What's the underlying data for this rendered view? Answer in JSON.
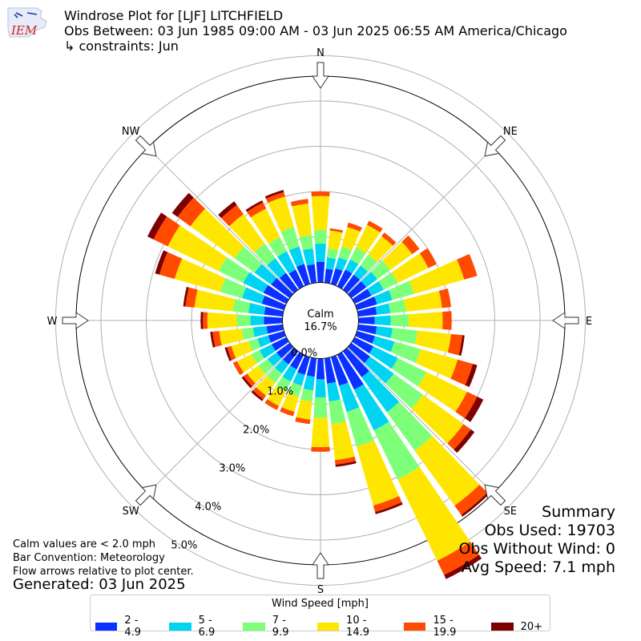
{
  "header": {
    "title": "Windrose Plot for [LJF] LITCHFIELD",
    "period": "Obs Between: 03 Jun 1985 09:00 AM - 03 Jun 2025 06:55 AM America/Chicago",
    "constraints": "↳ constraints: Jun"
  },
  "logo": {
    "text": "IEM",
    "color": "#cc2222"
  },
  "notes": {
    "calm_note": "Calm values are < 2.0 mph",
    "bar_convention": "Bar Convention: Meteorology",
    "flow_note": "Flow arrows relative to plot center.",
    "generated": "Generated: 03 Jun 2025"
  },
  "summary": {
    "title": "Summary",
    "obs_used": "Obs Used: 19703",
    "obs_without_wind": "Obs Without Wind: 0",
    "avg_speed": "Avg Speed: 7.1 mph"
  },
  "chart_data": {
    "type": "windrose",
    "calm_label": "Calm",
    "calm_value": "16.7%",
    "radial_labels": [
      "0.0%",
      "1.0%",
      "2.0%",
      "3.0%",
      "4.0%",
      "5.0%"
    ],
    "radial_ticks": [
      0,
      1,
      2,
      3,
      4,
      5
    ],
    "compass_labels": [
      "N",
      "NE",
      "E",
      "SE",
      "S",
      "SW",
      "W",
      "NW"
    ],
    "legend_title": "Wind Speed [mph]",
    "bins": [
      {
        "label": "2 - 4.9",
        "color": "#0a31ff"
      },
      {
        "label": "5 - 6.9",
        "color": "#00d4f2"
      },
      {
        "label": "7 - 9.9",
        "color": "#7dff7a"
      },
      {
        "label": "10 - 14.9",
        "color": "#ffe600"
      },
      {
        "label": "15 - 19.9",
        "color": "#ff4a00"
      },
      {
        "label": "20+",
        "color": "#7f0000"
      }
    ],
    "directions_deg": [
      0,
      10,
      20,
      30,
      40,
      50,
      60,
      70,
      80,
      90,
      100,
      110,
      120,
      130,
      140,
      150,
      160,
      170,
      180,
      190,
      200,
      210,
      220,
      230,
      240,
      250,
      260,
      270,
      280,
      290,
      300,
      310,
      320,
      330,
      340,
      350
    ],
    "cumulative_percent": [
      [
        0.45,
        0.85,
        1.15,
        1.9,
        2.0,
        2.0
      ],
      [
        0.3,
        0.55,
        0.75,
        1.15,
        1.2,
        1.2
      ],
      [
        0.35,
        0.6,
        0.85,
        1.3,
        1.4,
        1.4
      ],
      [
        0.4,
        0.65,
        0.95,
        1.5,
        1.6,
        1.6
      ],
      [
        0.4,
        0.65,
        0.95,
        1.45,
        1.55,
        1.55
      ],
      [
        0.4,
        0.7,
        1.05,
        1.65,
        1.85,
        1.85
      ],
      [
        0.4,
        0.7,
        1.05,
        1.8,
        2.0,
        2.0
      ],
      [
        0.45,
        0.8,
        1.3,
        2.45,
        2.75,
        2.75
      ],
      [
        0.4,
        0.7,
        1.05,
        1.85,
        2.05,
        2.05
      ],
      [
        0.35,
        0.7,
        1.1,
        1.85,
        2.05,
        2.05
      ],
      [
        0.4,
        0.75,
        1.3,
        2.05,
        2.3,
        2.35
      ],
      [
        0.4,
        0.85,
        1.45,
        2.3,
        2.65,
        2.75
      ],
      [
        0.45,
        1.05,
        1.75,
        2.75,
        3.0,
        3.15
      ],
      [
        0.5,
        1.15,
        1.95,
        3.05,
        3.25,
        3.35
      ],
      [
        0.7,
        1.65,
        2.7,
        4.2,
        4.45,
        4.5
      ],
      [
        0.85,
        1.85,
        3.05,
        5.05,
        5.4,
        5.5
      ],
      [
        0.65,
        1.25,
        2.05,
        3.4,
        3.55,
        3.6
      ],
      [
        0.55,
        0.95,
        1.45,
        2.25,
        2.35,
        2.4
      ],
      [
        0.45,
        0.85,
        1.3,
        1.95,
        2.05,
        2.05
      ],
      [
        0.4,
        0.7,
        0.95,
        1.35,
        1.45,
        1.45
      ],
      [
        0.4,
        0.65,
        0.9,
        1.25,
        1.35,
        1.35
      ],
      [
        0.35,
        0.65,
        0.9,
        1.25,
        1.35,
        1.35
      ],
      [
        0.35,
        0.6,
        0.85,
        1.2,
        1.3,
        1.35
      ],
      [
        0.35,
        0.6,
        0.85,
        1.15,
        1.25,
        1.3
      ],
      [
        0.35,
        0.65,
        0.85,
        1.2,
        1.3,
        1.3
      ],
      [
        0.35,
        0.6,
        0.8,
        1.2,
        1.3,
        1.35
      ],
      [
        0.35,
        0.65,
        0.9,
        1.4,
        1.55,
        1.6
      ],
      [
        0.4,
        0.7,
        1.0,
        1.65,
        1.75,
        1.8
      ],
      [
        0.4,
        0.75,
        1.1,
        1.95,
        2.15,
        2.2
      ],
      [
        0.5,
        0.95,
        1.45,
        2.5,
        2.85,
        2.95
      ],
      [
        0.55,
        1.05,
        1.65,
        2.9,
        3.25,
        3.4
      ],
      [
        0.5,
        0.95,
        1.5,
        2.7,
        3.05,
        3.2
      ],
      [
        0.45,
        0.85,
        1.25,
        2.05,
        2.3,
        2.4
      ],
      [
        0.4,
        0.85,
        1.2,
        1.9,
        2.05,
        2.1
      ],
      [
        0.45,
        0.85,
        1.3,
        2.0,
        2.1,
        2.15
      ],
      [
        0.4,
        0.75,
        1.05,
        1.75,
        1.85,
        1.85
      ]
    ]
  }
}
